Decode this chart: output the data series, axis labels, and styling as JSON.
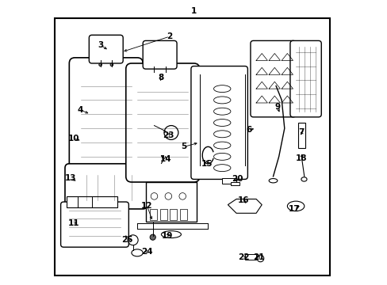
{
  "background_color": "#ffffff",
  "line_color": "#000000",
  "text_color": "#000000",
  "figsize": [
    4.89,
    3.6
  ],
  "dpi": 100,
  "label_positions": {
    "1": [
      0.5,
      0.965,
      null,
      null
    ],
    "2": [
      0.415,
      0.875,
      0.245,
      0.82
    ],
    "3": [
      0.17,
      0.845,
      0.2,
      0.825
    ],
    "4": [
      0.1,
      0.615,
      0.135,
      0.6
    ],
    "5": [
      0.465,
      0.485,
      0.52,
      0.5
    ],
    "6": [
      0.695,
      0.545,
      0.72,
      0.55
    ],
    "7": [
      0.88,
      0.535,
      0.875,
      0.535
    ],
    "8": [
      0.385,
      0.73,
      0.38,
      0.71
    ],
    "9": [
      0.795,
      0.625,
      0.805,
      0.6
    ],
    "10": [
      0.075,
      0.515,
      0.105,
      0.505
    ],
    "11": [
      0.075,
      0.215,
      0.095,
      0.22
    ],
    "12": [
      0.335,
      0.275,
      0.355,
      0.22
    ],
    "13": [
      0.065,
      0.375,
      0.09,
      0.36
    ],
    "14": [
      0.4,
      0.44,
      0.4,
      0.46
    ],
    "15": [
      0.545,
      0.425,
      0.545,
      0.445
    ],
    "16": [
      0.675,
      0.295,
      0.685,
      0.285
    ],
    "17": [
      0.855,
      0.265,
      0.88,
      0.28
    ],
    "18": [
      0.88,
      0.445,
      0.882,
      0.46
    ],
    "19": [
      0.405,
      0.17,
      0.415,
      0.175
    ],
    "20": [
      0.655,
      0.37,
      0.645,
      0.365
    ],
    "21": [
      0.73,
      0.095,
      0.733,
      0.1
    ],
    "22": [
      0.675,
      0.095,
      0.685,
      0.1
    ],
    "23": [
      0.41,
      0.525,
      0.415,
      0.535
    ],
    "24": [
      0.335,
      0.115,
      0.325,
      0.115
    ],
    "25": [
      0.265,
      0.155,
      0.275,
      0.155
    ]
  }
}
